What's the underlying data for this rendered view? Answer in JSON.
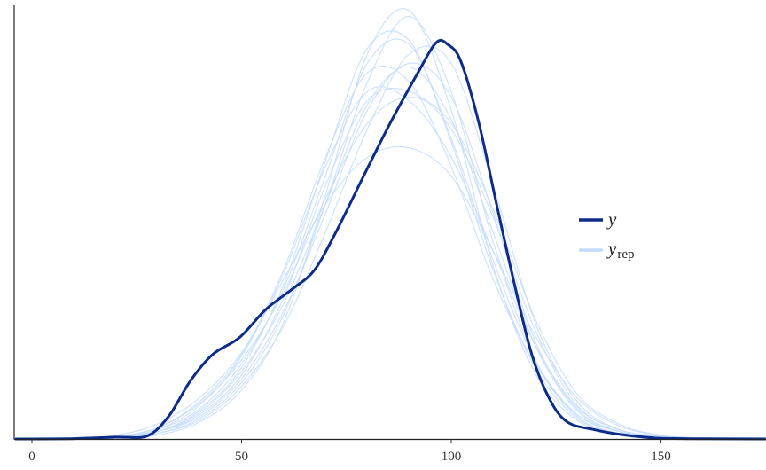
{
  "chart_data": {
    "type": "line",
    "title": "",
    "xlabel": "",
    "ylabel": "",
    "xlim": [
      -4.2,
      175
    ],
    "ylim": [
      0,
      0.0229
    ],
    "x_ticks": [
      "0",
      "50",
      "100",
      "150"
    ],
    "x_tick_values": [
      0,
      50,
      100,
      150
    ],
    "grid": false,
    "legend": {
      "position": "right",
      "entries": [
        {
          "label": "y",
          "sub": ""
        },
        {
          "label": "y",
          "sub": "rep"
        }
      ]
    },
    "colors": {
      "y": "#0d2c8a",
      "yrep": "#c3dcfa"
    },
    "series": [
      {
        "name": "y",
        "x": [
          -4,
          10,
          19.9,
          27.3,
          32.6,
          37.8,
          43.1,
          49.5,
          55.8,
          62.2,
          67.4,
          72.7,
          79.1,
          85.4,
          91.8,
          96.4,
          99.2,
          102.3,
          106.6,
          110.8,
          115.0,
          119.2,
          123.5,
          127.7,
          134.0,
          140.4,
          148.8,
          160,
          175
        ],
        "y": [
          0,
          2e-05,
          0.0001,
          0.00014,
          0.0012,
          0.0031,
          0.0045,
          0.0054,
          0.0069,
          0.008,
          0.009,
          0.0111,
          0.014,
          0.0168,
          0.0194,
          0.0211,
          0.021,
          0.0201,
          0.0168,
          0.0125,
          0.0083,
          0.0045,
          0.0021,
          0.0009,
          0.0005,
          0.00024,
          5e-05,
          1e-05,
          0
        ]
      }
    ],
    "yrep": {
      "name": "y_rep",
      "x": [
        -5,
        0,
        10,
        20,
        30,
        40,
        50,
        60,
        70,
        80,
        90,
        100,
        110,
        120,
        130,
        140,
        150,
        160,
        175
      ],
      "draws": [
        [
          0,
          0,
          2e-05,
          0.0001,
          0.0004,
          0.0014,
          0.0036,
          0.0072,
          0.0125,
          0.0178,
          0.0198,
          0.017,
          0.011,
          0.005,
          0.0015,
          0.0004,
          0.0001,
          2e-05,
          0
        ],
        [
          0,
          0,
          1e-05,
          8e-05,
          0.0003,
          0.0011,
          0.003,
          0.0066,
          0.0125,
          0.019,
          0.0225,
          0.0185,
          0.0105,
          0.0042,
          0.0012,
          0.0003,
          0.0001,
          1e-05,
          0
        ],
        [
          0,
          0,
          3e-05,
          0.00015,
          0.0006,
          0.002,
          0.0045,
          0.009,
          0.015,
          0.0195,
          0.019,
          0.0145,
          0.0085,
          0.004,
          0.0013,
          0.0004,
          0.0001,
          2e-05,
          0
        ],
        [
          0,
          1e-05,
          5e-05,
          0.0002,
          0.0008,
          0.0022,
          0.0046,
          0.0085,
          0.0125,
          0.015,
          0.0155,
          0.014,
          0.01,
          0.0055,
          0.0022,
          0.0007,
          0.0002,
          5e-05,
          0
        ],
        [
          0,
          0,
          1e-05,
          6e-05,
          0.0003,
          0.001,
          0.0028,
          0.006,
          0.011,
          0.0165,
          0.0205,
          0.02,
          0.0135,
          0.0062,
          0.002,
          0.0005,
          0.0001,
          2e-05,
          0
        ],
        [
          0,
          0,
          2e-05,
          0.0001,
          0.0005,
          0.0016,
          0.004,
          0.008,
          0.014,
          0.02,
          0.021,
          0.016,
          0.0095,
          0.0042,
          0.0013,
          0.0004,
          0.0001,
          2e-05,
          0
        ],
        [
          0,
          0,
          2e-05,
          0.0001,
          0.0004,
          0.0013,
          0.0034,
          0.0075,
          0.0135,
          0.018,
          0.0185,
          0.0165,
          0.0118,
          0.0058,
          0.0018,
          0.0005,
          0.00015,
          3e-05,
          0
        ],
        [
          0,
          0,
          1e-05,
          5e-05,
          0.0002,
          0.0009,
          0.0026,
          0.0062,
          0.013,
          0.0205,
          0.0228,
          0.0175,
          0.0092,
          0.0035,
          0.001,
          0.0002,
          5e-05,
          1e-05,
          0
        ],
        [
          0,
          0,
          3e-05,
          0.00012,
          0.0005,
          0.0018,
          0.0044,
          0.0088,
          0.0145,
          0.0185,
          0.018,
          0.015,
          0.01,
          0.005,
          0.0017,
          0.0005,
          0.00015,
          3e-05,
          0
        ],
        [
          0,
          0,
          2e-05,
          0.0001,
          0.0004,
          0.0012,
          0.0032,
          0.0068,
          0.012,
          0.0175,
          0.02,
          0.0182,
          0.012,
          0.0052,
          0.0016,
          0.0004,
          0.0001,
          2e-05,
          0
        ],
        [
          0,
          0,
          2e-05,
          0.0001,
          0.0006,
          0.0019,
          0.0042,
          0.0078,
          0.0128,
          0.0168,
          0.0182,
          0.0168,
          0.0122,
          0.0064,
          0.0024,
          0.0008,
          0.0002,
          4e-05,
          0
        ],
        [
          0,
          0,
          1e-05,
          8e-05,
          0.0004,
          0.0015,
          0.0038,
          0.0082,
          0.0148,
          0.0208,
          0.0212,
          0.0158,
          0.009,
          0.0038,
          0.0011,
          0.0003,
          0.0001,
          1e-05,
          0
        ]
      ]
    }
  }
}
